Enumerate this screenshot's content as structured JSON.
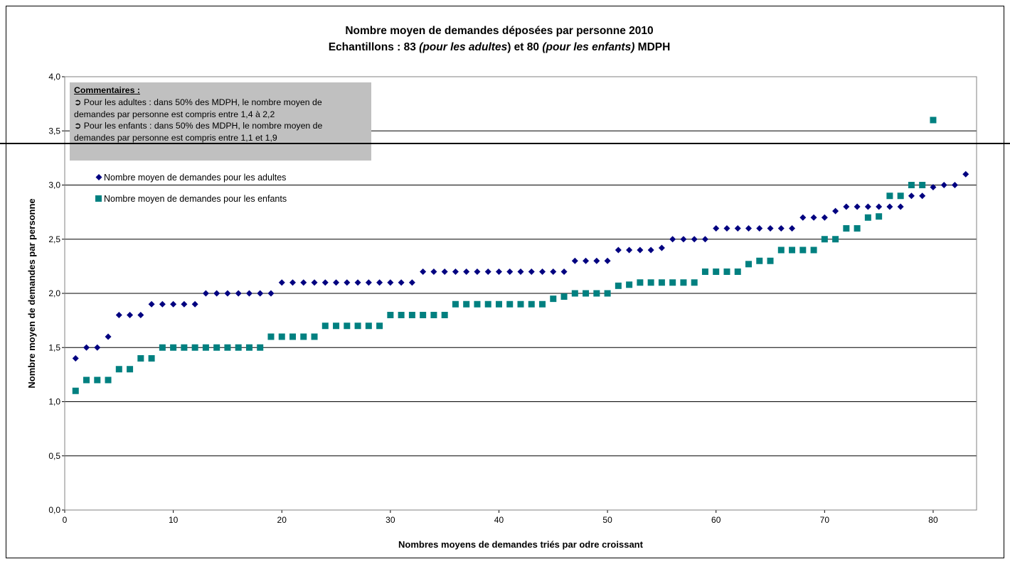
{
  "chart_data": {
    "type": "scatter",
    "title_line1": "Nombre moyen de demandes déposées par personne 2010",
    "title_line2_parts": [
      "Echantillons : 83 ",
      "(pour les adultes",
      ") et 80 ",
      "(pour les enfants)",
      " MDPH"
    ],
    "xlabel": "Nombres moyens de demandes triés par odre croissant",
    "ylabel": "Nombre moyen de demandes par personne",
    "xlim": [
      0,
      84
    ],
    "ylim": [
      0,
      4
    ],
    "x_ticks": [
      0,
      10,
      20,
      30,
      40,
      50,
      60,
      70,
      80
    ],
    "y_ticks": [
      "0,0",
      "0,5",
      "1,0",
      "1,5",
      "2,0",
      "2,5",
      "3,0",
      "3,5",
      "4,0"
    ],
    "y_tick_values": [
      0,
      0.5,
      1,
      1.5,
      2,
      2.5,
      3,
      3.5,
      4
    ],
    "grid": "horizontal",
    "series": [
      {
        "name": "Nombre moyen de demandes pour les adultes",
        "marker": "diamond",
        "color": "#000080",
        "values": [
          1.4,
          1.5,
          1.5,
          1.6,
          1.8,
          1.8,
          1.8,
          1.9,
          1.9,
          1.9,
          1.9,
          1.9,
          2.0,
          2.0,
          2.0,
          2.0,
          2.0,
          2.0,
          2.0,
          2.1,
          2.1,
          2.1,
          2.1,
          2.1,
          2.1,
          2.1,
          2.1,
          2.1,
          2.1,
          2.1,
          2.1,
          2.1,
          2.2,
          2.2,
          2.2,
          2.2,
          2.2,
          2.2,
          2.2,
          2.2,
          2.2,
          2.2,
          2.2,
          2.2,
          2.2,
          2.2,
          2.3,
          2.3,
          2.3,
          2.3,
          2.4,
          2.4,
          2.4,
          2.4,
          2.42,
          2.5,
          2.5,
          2.5,
          2.5,
          2.6,
          2.6,
          2.6,
          2.6,
          2.6,
          2.6,
          2.6,
          2.6,
          2.7,
          2.7,
          2.7,
          2.76,
          2.8,
          2.8,
          2.8,
          2.8,
          2.8,
          2.8,
          2.9,
          2.9,
          2.98,
          3.0,
          3.0,
          3.1
        ]
      },
      {
        "name": "Nombre moyen de demandes pour les enfants",
        "marker": "square",
        "color": "#008080",
        "values": [
          1.1,
          1.2,
          1.2,
          1.2,
          1.3,
          1.3,
          1.4,
          1.4,
          1.5,
          1.5,
          1.5,
          1.5,
          1.5,
          1.5,
          1.5,
          1.5,
          1.5,
          1.5,
          1.6,
          1.6,
          1.6,
          1.6,
          1.6,
          1.7,
          1.7,
          1.7,
          1.7,
          1.7,
          1.7,
          1.8,
          1.8,
          1.8,
          1.8,
          1.8,
          1.8,
          1.9,
          1.9,
          1.9,
          1.9,
          1.9,
          1.9,
          1.9,
          1.9,
          1.9,
          1.95,
          1.97,
          2.0,
          2.0,
          2.0,
          2.0,
          2.07,
          2.08,
          2.1,
          2.1,
          2.1,
          2.1,
          2.1,
          2.1,
          2.2,
          2.2,
          2.2,
          2.2,
          2.27,
          2.3,
          2.3,
          2.4,
          2.4,
          2.4,
          2.4,
          2.5,
          2.5,
          2.6,
          2.6,
          2.7,
          2.71,
          2.9,
          2.9,
          3.0,
          3.0,
          3.6
        ]
      }
    ],
    "legend_placement": "top-left inside plot"
  },
  "comments": {
    "heading": "Commentaires :",
    "bullet": "➲",
    "line1": "Pour les adultes : dans 50% des MDPH, le nombre moyen de",
    "line2": "demandes par personne est compris entre 1,4 à 2,2",
    "line3": "Pour les enfants : dans 50% des MDPH, le nombre moyen de",
    "line4": "demandes par personne est compris entre 1,1 et 1,9",
    "box_color": "#c0c0c0"
  }
}
